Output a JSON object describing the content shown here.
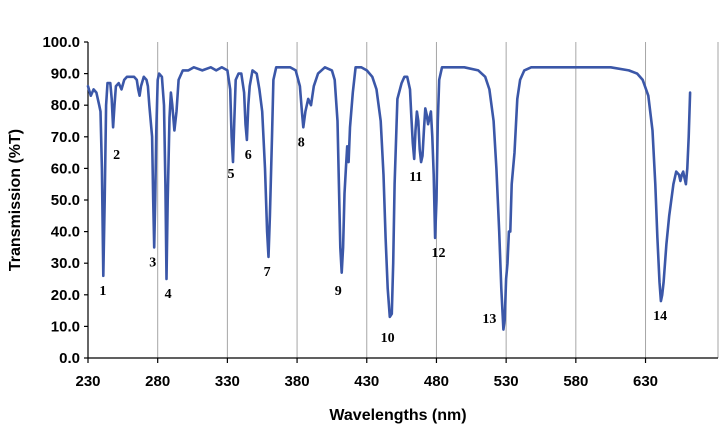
{
  "chart_data": {
    "type": "line",
    "xlabel": "Wavelengths (nm)",
    "ylabel": "Transmission (%T)",
    "xlim": [
      230,
      682
    ],
    "ylim": [
      0,
      100
    ],
    "grid": "vertical",
    "legend": "none",
    "x_ticks": [
      "230",
      "280",
      "330",
      "380",
      "430",
      "480",
      "530",
      "580",
      "630"
    ],
    "y_ticks": [
      "0.0",
      "10.0",
      "20.0",
      "30.0",
      "40.0",
      "50.0",
      "60.0",
      "70.0",
      "80.0",
      "90.0",
      "100.0"
    ],
    "x_tick_values": [
      230,
      280,
      330,
      380,
      430,
      480,
      530,
      580,
      630
    ],
    "y_tick_values": [
      0,
      10,
      20,
      30,
      40,
      50,
      60,
      70,
      80,
      90,
      100
    ],
    "series": [
      {
        "color": "#3b57a8",
        "points": [
          [
            230,
            86
          ],
          [
            232,
            83
          ],
          [
            234,
            85
          ],
          [
            236,
            84
          ],
          [
            238,
            80
          ],
          [
            239,
            78
          ],
          [
            240,
            60
          ],
          [
            241,
            26
          ],
          [
            242,
            50
          ],
          [
            243,
            80
          ],
          [
            244,
            87
          ],
          [
            246,
            87
          ],
          [
            247,
            82
          ],
          [
            248,
            73
          ],
          [
            249,
            80
          ],
          [
            250,
            86
          ],
          [
            252,
            87
          ],
          [
            254,
            85
          ],
          [
            256,
            88
          ],
          [
            258,
            89
          ],
          [
            261,
            89
          ],
          [
            263,
            89
          ],
          [
            265,
            88
          ],
          [
            266,
            85
          ],
          [
            267,
            83
          ],
          [
            268,
            86
          ],
          [
            270,
            89
          ],
          [
            272,
            88
          ],
          [
            273,
            86
          ],
          [
            274,
            80
          ],
          [
            276,
            70
          ],
          [
            276.8,
            50
          ],
          [
            277.5,
            35
          ],
          [
            278.2,
            50
          ],
          [
            279,
            72
          ],
          [
            280,
            88
          ],
          [
            281,
            90
          ],
          [
            283,
            89
          ],
          [
            284.5,
            80
          ],
          [
            285.5,
            55
          ],
          [
            286.3,
            25
          ],
          [
            287.2,
            50
          ],
          [
            288.5,
            76
          ],
          [
            289.5,
            84
          ],
          [
            290.5,
            80
          ],
          [
            292,
            72
          ],
          [
            293.5,
            78
          ],
          [
            295,
            88
          ],
          [
            298,
            91
          ],
          [
            302,
            91
          ],
          [
            306,
            92
          ],
          [
            312,
            91
          ],
          [
            318,
            92
          ],
          [
            322,
            91
          ],
          [
            326,
            92
          ],
          [
            330,
            91
          ],
          [
            332,
            85
          ],
          [
            333,
            70
          ],
          [
            334,
            62
          ],
          [
            335,
            75
          ],
          [
            336,
            88
          ],
          [
            338,
            90
          ],
          [
            340,
            90
          ],
          [
            342,
            84
          ],
          [
            343,
            74
          ],
          [
            344,
            69
          ],
          [
            345,
            80
          ],
          [
            346,
            86
          ],
          [
            348,
            91
          ],
          [
            351,
            90
          ],
          [
            353,
            85
          ],
          [
            355,
            78
          ],
          [
            357,
            60
          ],
          [
            358.5,
            40
          ],
          [
            359.5,
            32
          ],
          [
            360.5,
            45
          ],
          [
            362,
            70
          ],
          [
            363,
            88
          ],
          [
            365,
            92
          ],
          [
            370,
            92
          ],
          [
            375,
            92
          ],
          [
            379,
            91
          ],
          [
            382,
            86
          ],
          [
            383.5,
            78
          ],
          [
            384.5,
            73
          ],
          [
            386,
            78
          ],
          [
            388,
            82
          ],
          [
            390,
            80
          ],
          [
            392,
            86
          ],
          [
            395,
            90
          ],
          [
            400,
            92
          ],
          [
            405,
            91
          ],
          [
            407,
            88
          ],
          [
            409,
            75
          ],
          [
            410,
            55
          ],
          [
            411,
            35
          ],
          [
            412,
            27
          ],
          [
            413,
            35
          ],
          [
            414,
            52
          ],
          [
            415,
            60
          ],
          [
            416,
            67
          ],
          [
            417,
            62
          ],
          [
            418,
            73
          ],
          [
            420,
            84
          ],
          [
            422,
            92
          ],
          [
            426,
            92
          ],
          [
            430,
            91
          ],
          [
            434,
            89
          ],
          [
            437,
            85
          ],
          [
            440,
            75
          ],
          [
            442,
            58
          ],
          [
            443.5,
            38
          ],
          [
            445,
            22
          ],
          [
            446.5,
            13
          ],
          [
            448,
            14
          ],
          [
            449,
            30
          ],
          [
            450,
            55
          ],
          [
            452,
            82
          ],
          [
            455,
            87
          ],
          [
            457,
            89
          ],
          [
            459,
            89
          ],
          [
            461,
            85
          ],
          [
            462,
            76
          ],
          [
            463,
            68
          ],
          [
            464,
            63
          ],
          [
            465,
            72
          ],
          [
            466,
            78
          ],
          [
            467,
            75
          ],
          [
            468,
            66
          ],
          [
            469,
            62
          ],
          [
            470,
            64
          ],
          [
            471,
            72
          ],
          [
            472,
            79
          ],
          [
            473,
            77
          ],
          [
            474,
            74
          ],
          [
            475,
            76
          ],
          [
            476,
            78
          ],
          [
            477,
            70
          ],
          [
            478,
            58
          ],
          [
            479,
            38
          ],
          [
            480,
            50
          ],
          [
            481,
            75
          ],
          [
            482,
            88
          ],
          [
            484,
            92
          ],
          [
            490,
            92
          ],
          [
            500,
            92
          ],
          [
            510,
            91
          ],
          [
            515,
            89
          ],
          [
            518,
            85
          ],
          [
            521,
            75
          ],
          [
            523,
            60
          ],
          [
            525,
            40
          ],
          [
            526.5,
            22
          ],
          [
            528,
            9
          ],
          [
            529,
            12
          ],
          [
            530,
            25
          ],
          [
            531,
            30
          ],
          [
            532,
            40
          ],
          [
            533,
            40
          ],
          [
            534,
            55
          ],
          [
            535,
            60
          ],
          [
            536,
            65
          ],
          [
            538,
            82
          ],
          [
            540,
            88
          ],
          [
            543,
            91
          ],
          [
            548,
            92
          ],
          [
            560,
            92
          ],
          [
            575,
            92
          ],
          [
            590,
            92
          ],
          [
            605,
            92
          ],
          [
            618,
            91
          ],
          [
            624,
            90
          ],
          [
            628,
            88
          ],
          [
            632,
            83
          ],
          [
            635,
            72
          ],
          [
            637,
            55
          ],
          [
            638.5,
            38
          ],
          [
            640,
            24
          ],
          [
            641,
            18
          ],
          [
            642,
            20
          ],
          [
            643,
            24
          ],
          [
            645,
            36
          ],
          [
            647,
            45
          ],
          [
            650,
            55
          ],
          [
            652,
            59
          ],
          [
            654,
            58
          ],
          [
            655,
            56
          ],
          [
            656,
            58
          ],
          [
            657,
            59
          ],
          [
            658,
            57
          ],
          [
            659,
            55
          ],
          [
            660,
            60
          ],
          [
            661,
            70
          ],
          [
            662,
            84
          ]
        ]
      }
    ],
    "annotations": [
      {
        "label": "1",
        "x": 240.7,
        "y": 20
      },
      {
        "label": "2",
        "x": 250.5,
        "y": 63
      },
      {
        "label": "3",
        "x": 276.5,
        "y": 29
      },
      {
        "label": "4",
        "x": 287.5,
        "y": 19
      },
      {
        "label": "5",
        "x": 332.6,
        "y": 57
      },
      {
        "label": "6",
        "x": 345,
        "y": 63
      },
      {
        "label": "7",
        "x": 358.5,
        "y": 26
      },
      {
        "label": "8",
        "x": 383,
        "y": 67
      },
      {
        "label": "9",
        "x": 409.5,
        "y": 20
      },
      {
        "label": "10",
        "x": 445,
        "y": 5
      },
      {
        "label": "11",
        "x": 465.2,
        "y": 56
      },
      {
        "label": "12",
        "x": 481.5,
        "y": 32
      },
      {
        "label": "13",
        "x": 518,
        "y": 11
      },
      {
        "label": "14",
        "x": 640.5,
        "y": 12
      }
    ]
  }
}
